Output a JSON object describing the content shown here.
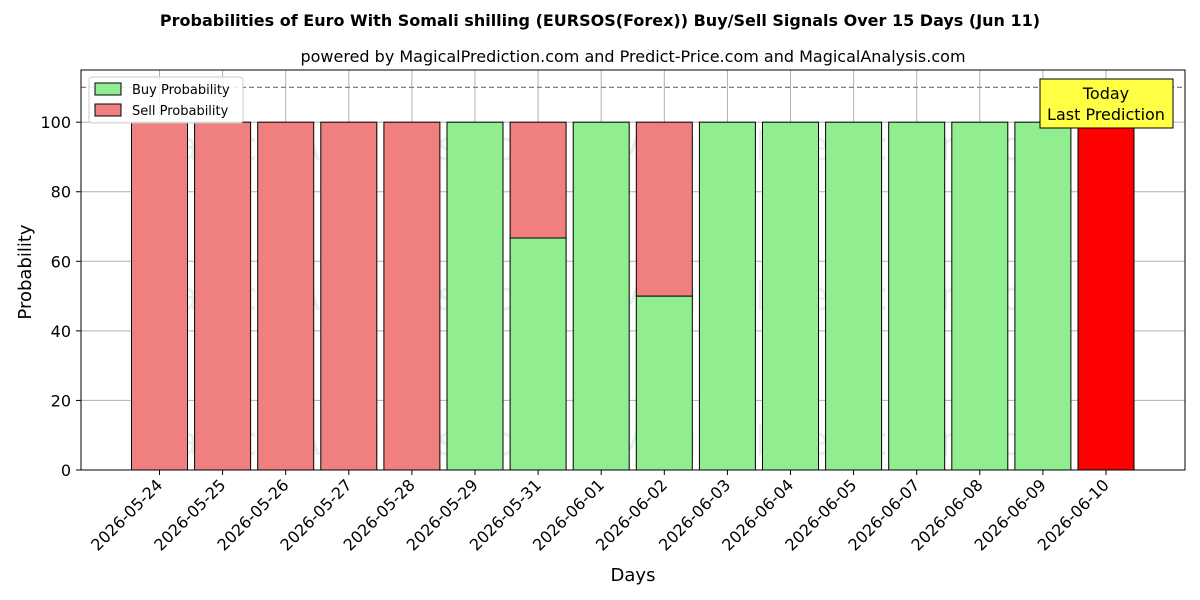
{
  "chart_data": {
    "type": "bar",
    "stacked": true,
    "title": "Probabilities of Euro With Somali shilling (EURSOS(Forex)) Buy/Sell Signals Over 15 Days (Jun 11)",
    "subtitle": "powered by MagicalPrediction.com and Predict-Price.com and MagicalAnalysis.com",
    "xlabel": "Days",
    "ylabel": "Probability",
    "ylim": [
      0,
      115
    ],
    "yticks": [
      0,
      20,
      40,
      60,
      80,
      100
    ],
    "grid": true,
    "legend_position": "top-left",
    "reference_line": 110,
    "categories": [
      "2026-05-24",
      "2026-05-25",
      "2026-05-26",
      "2026-05-27",
      "2026-05-28",
      "2026-05-29",
      "2026-05-31",
      "2026-06-01",
      "2026-06-02",
      "2026-06-03",
      "2026-06-04",
      "2026-06-05",
      "2026-06-07",
      "2026-06-08",
      "2026-06-09",
      "2026-06-10"
    ],
    "series": [
      {
        "name": "Buy Probability",
        "color": "#90ee90",
        "values": [
          0,
          0,
          0,
          0,
          0,
          100,
          66.7,
          100,
          50,
          100,
          100,
          100,
          100,
          100,
          100,
          0
        ]
      },
      {
        "name": "Sell Probability",
        "color": "#f08080",
        "values": [
          100,
          100,
          100,
          100,
          100,
          0,
          33.3,
          0,
          50,
          0,
          0,
          0,
          0,
          0,
          0,
          100
        ]
      }
    ],
    "highlight": {
      "category": "2026-06-10",
      "color": "#ff0000"
    },
    "annotation": {
      "lines": [
        "Today",
        "Last Prediction"
      ],
      "background": "#ffff44"
    },
    "watermarks": [
      "MagicalAnalysis.com",
      "MagicalPrediction.com"
    ]
  }
}
